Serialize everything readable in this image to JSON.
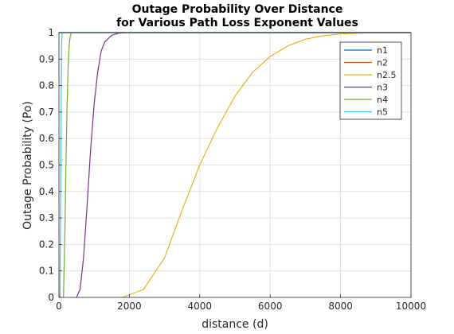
{
  "chart_data": {
    "type": "line",
    "title_line1": "Outage Probability Over Distance",
    "title_line2": "for Various Path Loss Exponent Values",
    "xlabel": "distance (d)",
    "ylabel": "Outage Probability (Po)",
    "xlim": [
      0,
      10000
    ],
    "ylim": [
      0,
      1
    ],
    "xticks": [
      0,
      2000,
      4000,
      6000,
      8000,
      10000
    ],
    "yticks": [
      0,
      0.1,
      0.2,
      0.3,
      0.4,
      0.5,
      0.6,
      0.7,
      0.8,
      0.9,
      1
    ],
    "grid": true,
    "legend_position": "top-right",
    "series": [
      {
        "name": "n1",
        "color": "#0072BD",
        "x": [
          0,
          3000,
          10000
        ],
        "y": [
          1,
          1,
          1
        ]
      },
      {
        "name": "n2",
        "color": "#D95319",
        "x": [
          0,
          3000,
          10000
        ],
        "y": [
          1,
          1,
          1
        ]
      },
      {
        "name": "n2.5",
        "color": "#EDB120",
        "x": [
          1800,
          2400,
          3000,
          3500,
          4000,
          4500,
          5000,
          5500,
          6000,
          6500,
          7000,
          7500,
          8000,
          8500,
          9000,
          10000
        ],
        "y": [
          0,
          0.03,
          0.15,
          0.33,
          0.5,
          0.64,
          0.76,
          0.85,
          0.91,
          0.95,
          0.975,
          0.988,
          0.995,
          0.998,
          1,
          1
        ]
      },
      {
        "name": "n3",
        "color": "#7E2F8E",
        "x": [
          500,
          600,
          700,
          800,
          900,
          1000,
          1100,
          1200,
          1300,
          1500,
          1700,
          2000,
          3000,
          10000
        ],
        "y": [
          0,
          0.03,
          0.15,
          0.35,
          0.56,
          0.73,
          0.85,
          0.93,
          0.965,
          0.99,
          0.998,
          1,
          1,
          1
        ]
      },
      {
        "name": "n4",
        "color": "#77AC30",
        "x": [
          130,
          170,
          200,
          230,
          260,
          290,
          320,
          350,
          3000,
          10000
        ],
        "y": [
          0,
          0.25,
          0.5,
          0.72,
          0.87,
          0.95,
          0.985,
          1,
          1,
          1
        ]
      },
      {
        "name": "n5",
        "color": "#4DBEEE",
        "x": [
          30,
          45,
          60,
          75,
          90,
          3000,
          10000
        ],
        "y": [
          0,
          0.3,
          0.7,
          0.95,
          1,
          1,
          1
        ]
      }
    ]
  }
}
